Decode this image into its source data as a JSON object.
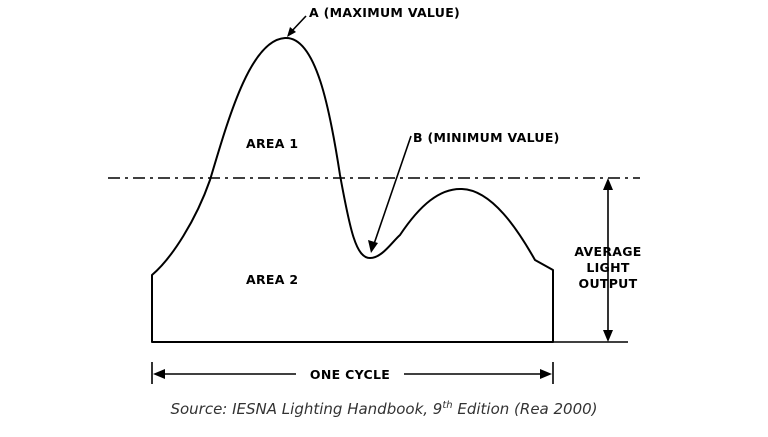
{
  "diagram": {
    "label_max": "A (MAXIMUM VALUE)",
    "label_min": "B (MINIMUM VALUE)",
    "area1": "AREA 1",
    "area2": "AREA 2",
    "avg_line1": "AVERAGE",
    "avg_line2": "LIGHT",
    "avg_line3": "OUTPUT",
    "cycle": "ONE CYCLE"
  },
  "caption": {
    "prefix": "Source:  IESNA Lighting Handbook, 9",
    "sup": "th",
    "suffix": " Edition (Rea 2000)"
  }
}
